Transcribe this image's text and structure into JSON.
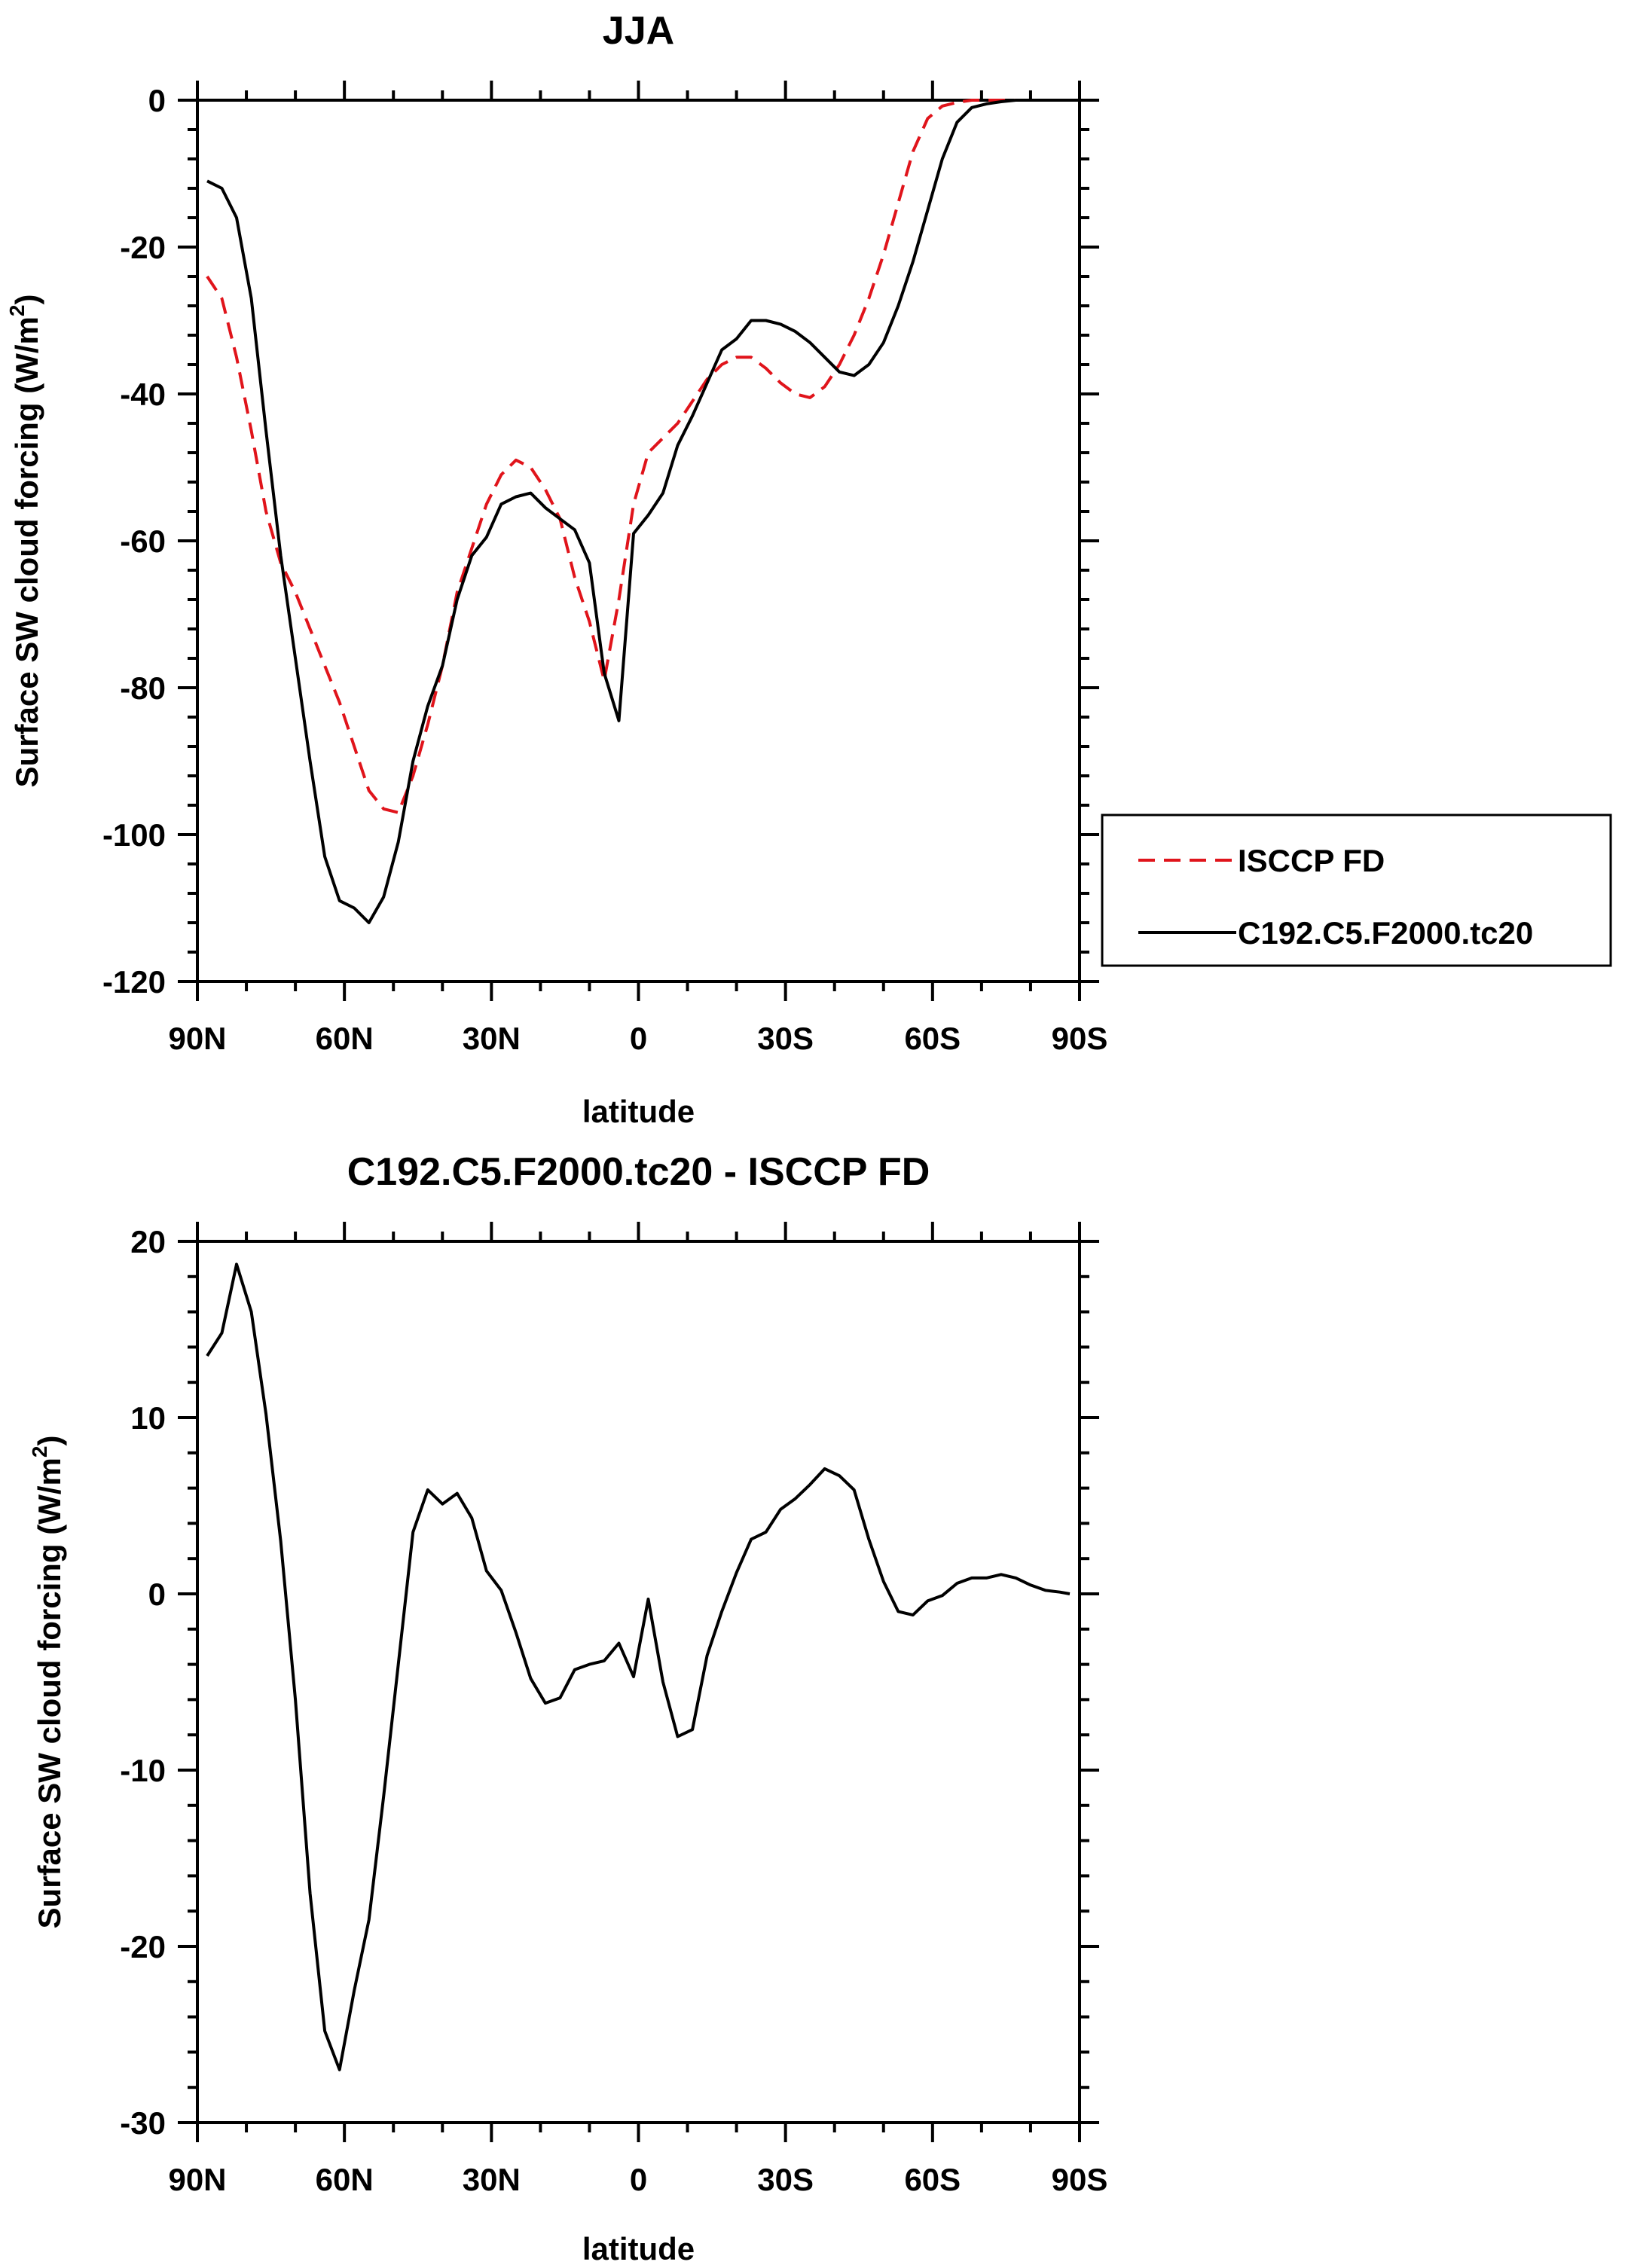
{
  "chart_data": [
    {
      "type": "line",
      "title": "JJA",
      "xlabel": "latitude",
      "ylabel_main": "Surface SW cloud forcing (W/m",
      "ylabel_sup": "2",
      "ylabel_tail": ")",
      "xlim": [
        90,
        -90
      ],
      "ylim": [
        -120,
        0
      ],
      "xticks": [
        {
          "value": 90,
          "label": "90N"
        },
        {
          "value": 60,
          "label": "60N"
        },
        {
          "value": 30,
          "label": "30N"
        },
        {
          "value": 0,
          "label": "0"
        },
        {
          "value": -30,
          "label": "30S"
        },
        {
          "value": -60,
          "label": "60S"
        },
        {
          "value": -90,
          "label": "90S"
        }
      ],
      "yticks": [
        0,
        -20,
        -40,
        -60,
        -80,
        -100,
        -120
      ],
      "legend": {
        "placement": "right"
      },
      "series": [
        {
          "name": "ISCCP FD",
          "color": "#e0141b",
          "dash": true,
          "x": [
            88,
            85,
            82,
            79,
            76,
            73,
            70,
            67,
            64,
            61,
            58,
            55,
            52,
            49,
            46,
            43,
            40,
            37,
            34,
            31,
            28,
            25,
            22,
            19,
            16,
            13,
            10,
            7,
            4,
            1,
            -2,
            -5,
            -8,
            -11,
            -14,
            -17,
            -20,
            -23,
            -26,
            -29,
            -32,
            -35,
            -38,
            -41,
            -44,
            -47,
            -50,
            -53,
            -56,
            -59,
            -62,
            -65,
            -68,
            -71,
            -74,
            -77,
            -80,
            -83,
            -86,
            -88
          ],
          "y": [
            -24,
            -27,
            -35,
            -45,
            -56,
            -63,
            -67,
            -72,
            -77,
            -82,
            -88,
            -94,
            -96.5,
            -97,
            -92,
            -85,
            -77,
            -67,
            -61,
            -55,
            -51,
            -49,
            -50,
            -53,
            -57,
            -65,
            -71,
            -79,
            -68,
            -55,
            -48,
            -46,
            -44,
            -41,
            -38,
            -36,
            -35,
            -35,
            -36.5,
            -38.5,
            -40,
            -40.5,
            -39,
            -36,
            -32,
            -27,
            -21,
            -14,
            -7,
            -2.5,
            -0.8,
            -0.3,
            0,
            0,
            0,
            0,
            0,
            0,
            0,
            0
          ]
        },
        {
          "name": "C192.C5.F2000.tc20",
          "color": "#000000",
          "dash": false,
          "x": [
            88,
            85,
            82,
            79,
            76,
            73,
            70,
            67,
            64,
            61,
            58,
            55,
            52,
            49,
            46,
            43,
            40,
            37,
            34,
            31,
            28,
            25,
            22,
            19,
            16,
            13,
            10,
            7,
            4,
            1,
            -2,
            -5,
            -8,
            -11,
            -14,
            -17,
            -20,
            -23,
            -26,
            -29,
            -32,
            -35,
            -38,
            -41,
            -44,
            -47,
            -50,
            -53,
            -56,
            -59,
            -62,
            -65,
            -68,
            -71,
            -74,
            -77,
            -80,
            -83,
            -86,
            -88
          ],
          "y": [
            -11,
            -12,
            -16,
            -27,
            -45,
            -62,
            -76,
            -90,
            -103,
            -109,
            -110,
            -112,
            -108.5,
            -101,
            -90,
            -82.5,
            -77,
            -68,
            -62,
            -59.5,
            -55,
            -54,
            -53.5,
            -55.5,
            -57,
            -58.5,
            -63,
            -78,
            -84.5,
            -59,
            -56.5,
            -53.5,
            -47,
            -43,
            -38.5,
            -34,
            -32.5,
            -30,
            -30,
            -30.5,
            -31.5,
            -33,
            -35,
            -37,
            -37.5,
            -36,
            -33,
            -28,
            -22,
            -15,
            -8,
            -3,
            -1,
            -0.5,
            -0.2,
            0,
            0,
            0,
            0,
            0
          ]
        }
      ]
    },
    {
      "type": "line",
      "title": "C192.C5.F2000.tc20 - ISCCP FD",
      "xlabel": "latitude",
      "ylabel_main": "Surface SW cloud forcing (W/m",
      "ylabel_sup": "2",
      "ylabel_tail": ")",
      "xlim": [
        90,
        -90
      ],
      "ylim": [
        -30,
        20
      ],
      "xticks": [
        {
          "value": 90,
          "label": "90N"
        },
        {
          "value": 60,
          "label": "60N"
        },
        {
          "value": 30,
          "label": "30N"
        },
        {
          "value": 0,
          "label": "0"
        },
        {
          "value": -30,
          "label": "30S"
        },
        {
          "value": -60,
          "label": "60S"
        },
        {
          "value": -90,
          "label": "90S"
        }
      ],
      "yticks": [
        20,
        10,
        0,
        -10,
        -20,
        -30
      ],
      "series": [
        {
          "color": "#000000",
          "dash": false,
          "x": [
            88,
            85,
            82,
            79,
            76,
            73,
            70,
            67,
            64,
            61,
            58,
            55,
            52,
            49,
            46,
            43,
            40,
            37,
            34,
            31,
            28,
            25,
            22,
            19,
            16,
            13,
            10,
            7,
            4,
            1,
            -2,
            -5,
            -8,
            -11,
            -14,
            -17,
            -20,
            -23,
            -26,
            -29,
            -32,
            -35,
            -38,
            -41,
            -44,
            -47,
            -50,
            -53,
            -56,
            -59,
            -62,
            -65,
            -68,
            -71,
            -74,
            -77,
            -80,
            -83,
            -86,
            -88
          ],
          "y": [
            13.5,
            14.8,
            18.7,
            16,
            10.2,
            3,
            -6,
            -17,
            -24.8,
            -27,
            -22.5,
            -18.5,
            -11.5,
            -4,
            3.5,
            5.9,
            5.1,
            5.7,
            4.3,
            1.3,
            0.2,
            -2.2,
            -4.8,
            -6.2,
            -5.9,
            -4.3,
            -4,
            -3.8,
            -2.8,
            -4.7,
            -0.3,
            -5,
            -8.1,
            -7.7,
            -3.5,
            -1,
            1.2,
            3.1,
            3.5,
            4.8,
            5.4,
            6.2,
            7.1,
            6.7,
            5.9,
            3.1,
            0.7,
            -1,
            -1.2,
            -0.4,
            -0.1,
            0.6,
            0.9,
            0.9,
            1.1,
            0.9,
            0.5,
            0.2,
            0.1,
            0
          ]
        }
      ]
    }
  ]
}
